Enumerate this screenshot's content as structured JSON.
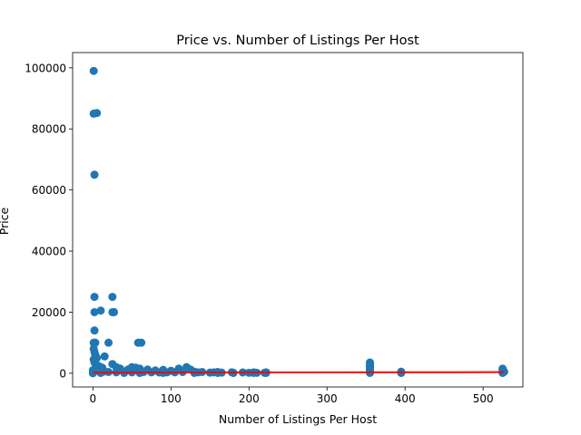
{
  "chart_data": {
    "type": "scatter",
    "title": "Price vs. Number of Listings Per Host",
    "xlabel": "Number of Listings Per Host",
    "ylabel": "Price",
    "xlim": [
      -26,
      551
    ],
    "ylim": [
      -4500,
      105000
    ],
    "xticks": [
      0,
      100,
      200,
      300,
      400,
      500
    ],
    "yticks": [
      0,
      20000,
      40000,
      60000,
      80000,
      100000
    ],
    "grid": false,
    "legend": "none",
    "colors": {
      "points": "#1f77b4",
      "trend": "#ff0000"
    },
    "series": [
      {
        "points": [
          [
            1,
            99000
          ],
          [
            1,
            85000
          ],
          [
            5,
            85200
          ],
          [
            2,
            65000
          ],
          [
            2,
            25000
          ],
          [
            25,
            25000
          ],
          [
            2,
            20000
          ],
          [
            25,
            20000
          ],
          [
            27,
            20000
          ],
          [
            10,
            20500
          ],
          [
            2,
            14000
          ],
          [
            1,
            10000
          ],
          [
            3,
            10000
          ],
          [
            20,
            10000
          ],
          [
            58,
            10000
          ],
          [
            62,
            10000
          ],
          [
            1,
            8000
          ],
          [
            2,
            7000
          ],
          [
            3,
            6000
          ],
          [
            5,
            5000
          ],
          [
            15,
            5500
          ],
          [
            1,
            4500
          ],
          [
            2,
            3500
          ],
          [
            4,
            3000
          ],
          [
            6,
            2500
          ],
          [
            8,
            2200
          ],
          [
            10,
            2000
          ],
          [
            12,
            1800
          ],
          [
            25,
            3000
          ],
          [
            30,
            2000
          ],
          [
            35,
            1500
          ],
          [
            45,
            1200
          ],
          [
            50,
            2000
          ],
          [
            55,
            1800
          ],
          [
            60,
            1500
          ],
          [
            70,
            1200
          ],
          [
            80,
            900
          ],
          [
            90,
            1100
          ],
          [
            100,
            800
          ],
          [
            110,
            1500
          ],
          [
            120,
            2000
          ],
          [
            125,
            1200
          ],
          [
            130,
            500
          ],
          [
            140,
            400
          ],
          [
            155,
            300
          ],
          [
            160,
            400
          ],
          [
            178,
            300
          ],
          [
            192,
            250
          ],
          [
            206,
            300
          ],
          [
            222,
            300
          ],
          [
            355,
            3500
          ],
          [
            355,
            3000
          ],
          [
            355,
            2500
          ],
          [
            355,
            2000
          ],
          [
            355,
            1500
          ],
          [
            355,
            1000
          ],
          [
            355,
            500
          ],
          [
            395,
            500
          ],
          [
            395,
            200
          ],
          [
            525,
            1500
          ],
          [
            525,
            1000
          ],
          [
            527,
            500
          ],
          [
            0,
            1000
          ],
          [
            5,
            800
          ],
          [
            15,
            600
          ],
          [
            20,
            400
          ],
          [
            30,
            300
          ],
          [
            40,
            500
          ],
          [
            50,
            300
          ],
          [
            65,
            400
          ],
          [
            75,
            300
          ],
          [
            85,
            250
          ],
          [
            95,
            300
          ],
          [
            105,
            300
          ],
          [
            115,
            400
          ],
          [
            135,
            300
          ],
          [
            150,
            200
          ],
          [
            165,
            200
          ],
          [
            180,
            150
          ],
          [
            200,
            150
          ],
          [
            210,
            150
          ],
          [
            220,
            150
          ],
          [
            355,
            200
          ],
          [
            395,
            100
          ],
          [
            525,
            200
          ],
          [
            0,
            0
          ],
          [
            10,
            100
          ],
          [
            40,
            100
          ],
          [
            60,
            100
          ],
          [
            90,
            100
          ],
          [
            130,
            100
          ],
          [
            160,
            100
          ],
          [
            180,
            100
          ],
          [
            206,
            100
          ],
          [
            222,
            100
          ],
          [
            355,
            100
          ],
          [
            525,
            100
          ]
        ]
      }
    ],
    "trend_line": {
      "x": [
        0,
        527
      ],
      "y": [
        200,
        350
      ]
    }
  }
}
